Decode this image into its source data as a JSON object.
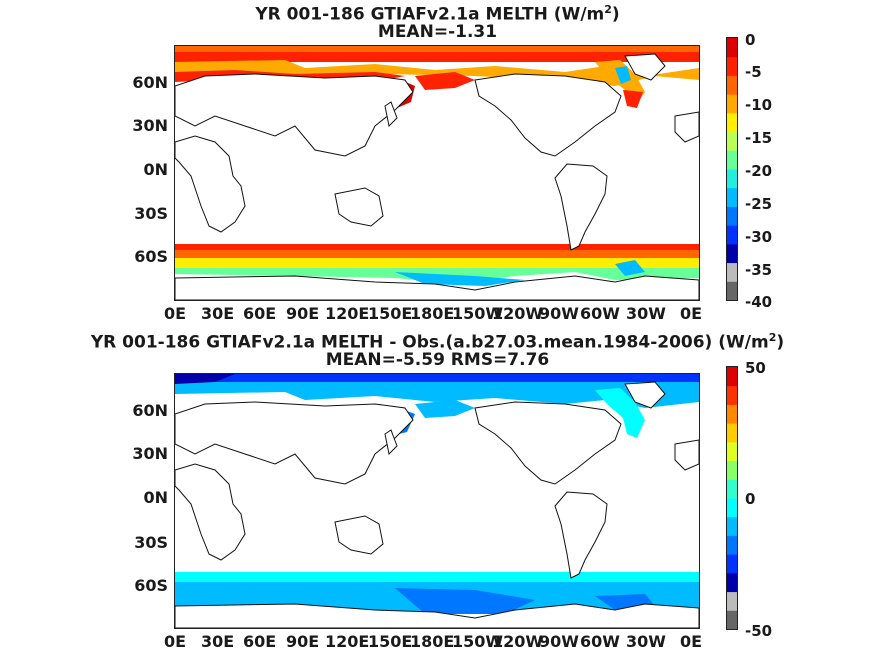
{
  "panel1": {
    "title_line1": "YR 001-186 GTIAFv2.1a  MELTH (W/m",
    "title_sup": "2",
    "title_close": ")",
    "title_line2": "MEAN=-1.31",
    "colorbar_labels": [
      "0",
      "-5",
      "-10",
      "-15",
      "-20",
      "-25",
      "-30",
      "-35",
      "-40"
    ]
  },
  "panel2": {
    "title_line1": "YR 001-186 GTIAFv2.1a MELTH - Obs.(a.b27.03.mean.1984-2006) (W/m",
    "title_sup": "2",
    "title_close": ")",
    "title_line2": "MEAN=-5.59 RMS=7.76",
    "colorbar_labels": [
      "50",
      "0",
      "-50"
    ]
  },
  "lat_labels": [
    "60N",
    "30N",
    "0N",
    "30S",
    "60S"
  ],
  "lon_labels": [
    "0E",
    "30E",
    "60E",
    "90E",
    "120E",
    "150E",
    "180E",
    "150W",
    "120W",
    "90W",
    "60W",
    "30W",
    "0E"
  ],
  "colors": {
    "panel1_scale": [
      "#666666",
      "#bbbbbb",
      "#0000aa",
      "#0033ff",
      "#0077ff",
      "#00bbff",
      "#22eedd",
      "#66ff99",
      "#bbff55",
      "#ffee00",
      "#ffaa00",
      "#ff6600",
      "#ff2200",
      "#dd0000"
    ],
    "panel2_scale": [
      "#666666",
      "#bbbbbb",
      "#0000aa",
      "#0033ff",
      "#0077ff",
      "#00bbff",
      "#00ffff",
      "#33ffcc",
      "#88ff66",
      "#ddff22",
      "#ffcc00",
      "#ff8800",
      "#ff3300",
      "#dd0000"
    ]
  }
}
